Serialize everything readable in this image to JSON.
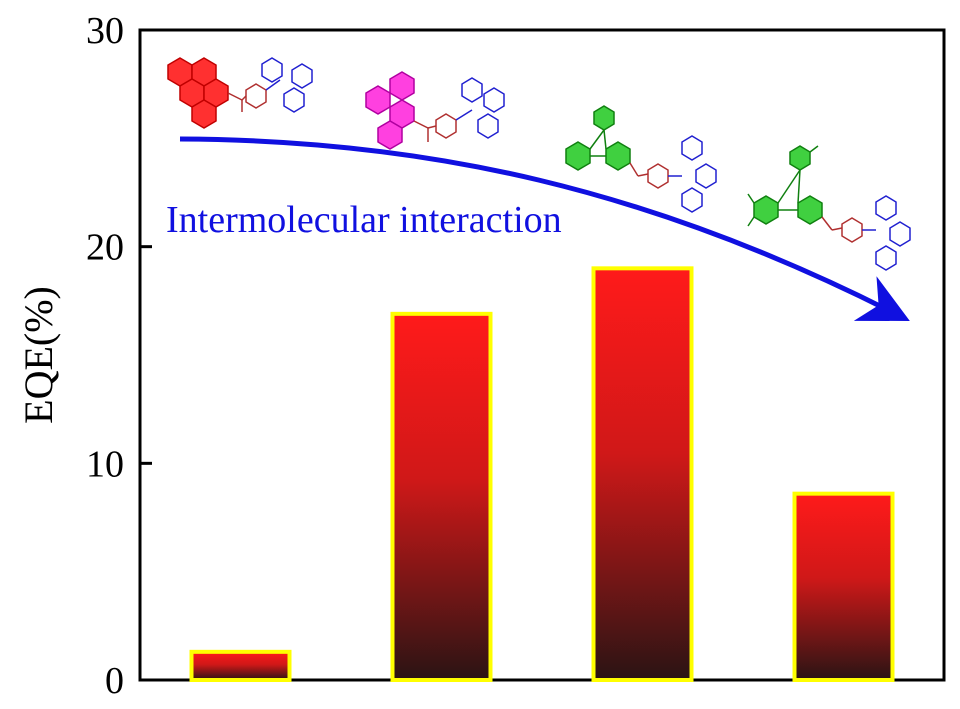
{
  "chart_data": {
    "type": "bar",
    "categories": [
      "",
      "",
      "",
      ""
    ],
    "values": [
      1.3,
      16.9,
      19.0,
      8.6
    ],
    "title": "",
    "xlabel": "",
    "ylabel": "EQE(%)",
    "ylim": [
      0,
      30
    ],
    "yticks": [
      "0",
      "10",
      "20",
      "30"
    ],
    "grid": false,
    "annotation": "Intermolecular interaction",
    "bar_colors": {
      "top": "#ff1a1a",
      "bottom": "#2a1414",
      "edge": "#ffff00"
    },
    "molecule_colors": [
      "#e01010",
      "#e010c0",
      "#20c020",
      "#20c020"
    ],
    "arrow_color": "#1010e0"
  }
}
